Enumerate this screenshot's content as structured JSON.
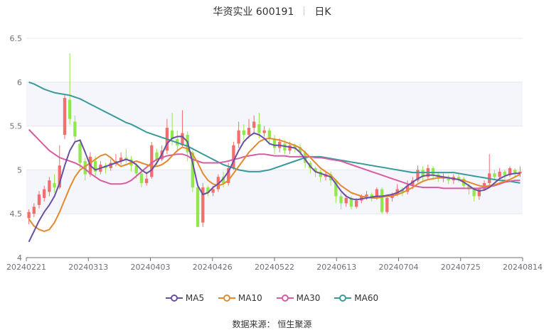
{
  "header": {
    "stock": "华资实业 600191",
    "period": "日K"
  },
  "source": "数据来源： 恒生聚源",
  "colors": {
    "up": "#f46e6e",
    "down": "#91e84c",
    "ma5": "#6b4fa3",
    "ma10": "#e38a2f",
    "ma30": "#d65ca4",
    "ma60": "#3a9a9a",
    "band": "#f4f6fb"
  },
  "chart_data": {
    "type": "candlestick",
    "title": "华资实业 600191 日K",
    "ylim": [
      4,
      6.5
    ],
    "y_ticks": [
      "4",
      "4.5",
      "5",
      "5.5",
      "6",
      "6.5"
    ],
    "x_tick_labels": [
      "20240221",
      "20240313",
      "20240403",
      "20240426",
      "20240522",
      "20240613",
      "20240704",
      "20240725",
      "20240814"
    ],
    "legend": [
      "MA5",
      "MA10",
      "MA30",
      "MA60"
    ],
    "candles": [
      [
        4.45,
        4.52,
        4.38,
        4.55
      ],
      [
        4.5,
        4.58,
        4.46,
        4.62
      ],
      [
        4.6,
        4.72,
        4.56,
        4.76
      ],
      [
        4.68,
        4.78,
        4.64,
        4.82
      ],
      [
        4.75,
        4.88,
        4.7,
        4.92
      ],
      [
        4.85,
        4.8,
        4.74,
        4.95
      ],
      [
        4.8,
        5.05,
        4.78,
        5.28
      ],
      [
        5.4,
        5.82,
        5.35,
        5.85
      ],
      [
        5.8,
        5.58,
        5.52,
        6.33
      ],
      [
        5.55,
        5.38,
        5.3,
        5.62
      ],
      [
        5.3,
        5.08,
        5.02,
        5.35
      ],
      [
        5.1,
        4.95,
        4.88,
        5.14
      ],
      [
        4.95,
        5.15,
        4.92,
        5.2
      ],
      [
        5.1,
        4.98,
        4.92,
        5.16
      ],
      [
        4.98,
        5.06,
        4.95,
        5.1
      ],
      [
        5.05,
        5.02,
        4.96,
        5.08
      ],
      [
        5.02,
        5.08,
        4.99,
        5.12
      ],
      [
        5.08,
        5.1,
        5.04,
        5.18
      ],
      [
        5.1,
        5.14,
        5.06,
        5.2
      ],
      [
        5.14,
        5.12,
        5.08,
        5.24
      ],
      [
        5.12,
        5.05,
        4.98,
        5.16
      ],
      [
        5.05,
        4.96,
        4.9,
        5.08
      ],
      [
        4.96,
        4.85,
        4.8,
        4.98
      ],
      [
        4.85,
        4.9,
        4.82,
        4.98
      ],
      [
        4.92,
        5.28,
        4.9,
        5.32
      ],
      [
        5.2,
        5.12,
        5.05,
        5.24
      ],
      [
        5.12,
        5.22,
        5.1,
        5.28
      ],
      [
        5.22,
        5.48,
        5.18,
        5.58
      ],
      [
        5.45,
        5.35,
        5.28,
        5.65
      ],
      [
        5.35,
        5.28,
        5.2,
        5.45
      ],
      [
        5.28,
        5.42,
        5.25,
        5.68
      ],
      [
        5.4,
        5.2,
        5.1,
        5.44
      ],
      [
        5.2,
        4.8,
        4.75,
        5.22
      ],
      [
        4.8,
        4.35,
        4.35,
        4.82
      ],
      [
        4.4,
        4.8,
        4.35,
        4.85
      ],
      [
        4.8,
        4.74,
        4.7,
        4.82
      ],
      [
        4.74,
        4.78,
        4.7,
        4.82
      ],
      [
        4.78,
        4.92,
        4.75,
        4.95
      ],
      [
        4.92,
        4.85,
        4.8,
        4.98
      ],
      [
        4.85,
        5.02,
        4.82,
        5.08
      ],
      [
        5.02,
        5.28,
        5.0,
        5.32
      ],
      [
        5.3,
        5.45,
        5.25,
        5.55
      ],
      [
        5.45,
        5.4,
        5.34,
        5.52
      ],
      [
        5.4,
        5.48,
        5.36,
        5.58
      ],
      [
        5.48,
        5.55,
        5.42,
        5.62
      ],
      [
        5.52,
        5.42,
        5.36,
        5.65
      ],
      [
        5.42,
        5.45,
        5.38,
        5.5
      ],
      [
        5.45,
        5.35,
        5.28,
        5.48
      ],
      [
        5.35,
        5.25,
        5.18,
        5.4
      ],
      [
        5.25,
        5.32,
        5.2,
        5.36
      ],
      [
        5.3,
        5.22,
        5.18,
        5.34
      ],
      [
        5.22,
        5.28,
        5.18,
        5.32
      ],
      [
        5.28,
        5.24,
        5.2,
        5.3
      ],
      [
        5.26,
        5.2,
        5.16,
        5.3
      ],
      [
        5.2,
        5.08,
        5.02,
        5.22
      ],
      [
        5.08,
        5.02,
        4.96,
        5.1
      ],
      [
        5.02,
        4.98,
        4.92,
        5.04
      ],
      [
        4.98,
        4.92,
        4.86,
        5.0
      ],
      [
        4.92,
        4.95,
        4.88,
        4.98
      ],
      [
        4.95,
        4.88,
        4.82,
        4.98
      ],
      [
        4.88,
        4.7,
        4.62,
        4.9
      ],
      [
        4.7,
        4.62,
        4.55,
        4.74
      ],
      [
        4.62,
        4.68,
        4.58,
        4.72
      ],
      [
        4.68,
        4.58,
        4.55,
        4.7
      ],
      [
        4.58,
        4.65,
        4.56,
        4.68
      ],
      [
        4.65,
        4.7,
        4.62,
        4.72
      ],
      [
        4.7,
        4.72,
        4.66,
        4.76
      ],
      [
        4.72,
        4.68,
        4.64,
        4.74
      ],
      [
        4.68,
        4.78,
        4.66,
        4.8
      ],
      [
        4.78,
        4.52,
        4.5,
        4.8
      ],
      [
        4.52,
        4.68,
        4.5,
        4.72
      ],
      [
        4.68,
        4.72,
        4.64,
        4.74
      ],
      [
        4.72,
        4.78,
        4.7,
        4.84
      ],
      [
        4.78,
        4.75,
        4.7,
        4.8
      ],
      [
        4.75,
        4.82,
        4.72,
        4.88
      ],
      [
        4.82,
        4.88,
        4.78,
        4.92
      ],
      [
        4.88,
        5.0,
        4.86,
        5.05
      ],
      [
        5.0,
        4.92,
        4.88,
        5.04
      ],
      [
        4.92,
        5.02,
        4.9,
        5.06
      ],
      [
        5.02,
        4.95,
        4.9,
        5.04
      ],
      [
        4.95,
        4.9,
        4.86,
        4.98
      ],
      [
        4.9,
        4.92,
        4.86,
        4.96
      ],
      [
        4.92,
        4.88,
        4.84,
        4.94
      ],
      [
        4.88,
        4.92,
        4.84,
        4.95
      ],
      [
        4.92,
        4.9,
        4.86,
        4.96
      ],
      [
        4.9,
        4.82,
        4.78,
        4.92
      ],
      [
        4.82,
        4.78,
        4.72,
        4.84
      ],
      [
        4.78,
        4.7,
        4.64,
        4.8
      ],
      [
        4.7,
        4.78,
        4.66,
        4.8
      ],
      [
        4.78,
        4.85,
        4.76,
        4.88
      ],
      [
        4.85,
        4.96,
        4.82,
        5.18
      ],
      [
        4.96,
        4.92,
        4.88,
        5.0
      ],
      [
        4.92,
        4.98,
        4.9,
        5.02
      ],
      [
        4.98,
        4.94,
        4.9,
        5.0
      ],
      [
        4.94,
        5.02,
        4.92,
        5.04
      ],
      [
        5.0,
        4.96,
        4.92,
        5.02
      ],
      [
        4.96,
        4.98,
        4.92,
        5.04
      ]
    ],
    "ma5": [
      4.18,
      4.3,
      4.42,
      4.52,
      4.6,
      4.7,
      4.85,
      5.05,
      5.22,
      5.32,
      5.34,
      5.2,
      5.05,
      5.0,
      5.02,
      5.04,
      5.06,
      5.08,
      5.1,
      5.12,
      5.1,
      5.06,
      5.0,
      4.96,
      5.0,
      5.08,
      5.18,
      5.3,
      5.36,
      5.38,
      5.38,
      5.32,
      5.08,
      4.82,
      4.72,
      4.74,
      4.8,
      4.84,
      4.9,
      4.98,
      5.1,
      5.22,
      5.32,
      5.38,
      5.42,
      5.4,
      5.36,
      5.3,
      5.28,
      5.28,
      5.27,
      5.26,
      5.25,
      5.2,
      5.12,
      5.04,
      4.98,
      4.96,
      4.94,
      4.92,
      4.84,
      4.76,
      4.7,
      4.67,
      4.66,
      4.67,
      4.68,
      4.69,
      4.7,
      4.7,
      4.71,
      4.72,
      4.74,
      4.77,
      4.82,
      4.86,
      4.9,
      4.93,
      4.94,
      4.94,
      4.93,
      4.92,
      4.91,
      4.9,
      4.89,
      4.86,
      4.82,
      4.78,
      4.76,
      4.77,
      4.8,
      4.85,
      4.9,
      4.93,
      4.95,
      4.96,
      4.96
    ],
    "ma10": [
      4.44,
      4.36,
      4.32,
      4.3,
      4.32,
      4.4,
      4.52,
      4.66,
      4.8,
      4.92,
      5.0,
      5.04,
      5.08,
      5.12,
      5.16,
      5.18,
      5.14,
      5.08,
      5.04,
      5.06,
      5.08,
      5.1,
      5.08,
      5.06,
      5.04,
      5.04,
      5.06,
      5.1,
      5.16,
      5.22,
      5.26,
      5.24,
      5.18,
      5.08,
      4.96,
      4.88,
      4.84,
      4.82,
      4.84,
      4.88,
      4.96,
      5.04,
      5.12,
      5.2,
      5.26,
      5.32,
      5.35,
      5.36,
      5.35,
      5.34,
      5.32,
      5.3,
      5.28,
      5.25,
      5.2,
      5.14,
      5.08,
      5.02,
      4.98,
      4.94,
      4.88,
      4.82,
      4.78,
      4.74,
      4.72,
      4.7,
      4.69,
      4.68,
      4.68,
      4.69,
      4.7,
      4.7,
      4.72,
      4.74,
      4.77,
      4.8,
      4.84,
      4.87,
      4.89,
      4.9,
      4.91,
      4.91,
      4.91,
      4.9,
      4.89,
      4.88,
      4.86,
      4.84,
      4.82,
      4.81,
      4.82,
      4.83,
      4.85,
      4.87,
      4.89,
      4.92,
      4.95
    ],
    "ma30": [
      5.46,
      5.4,
      5.34,
      5.28,
      5.22,
      5.18,
      5.14,
      5.12,
      5.1,
      5.08,
      5.05,
      5.01,
      4.96,
      4.92,
      4.88,
      4.86,
      4.84,
      4.84,
      4.84,
      4.85,
      4.88,
      4.93,
      4.98,
      5.03,
      5.08,
      5.12,
      5.14,
      5.16,
      5.17,
      5.18,
      5.18,
      5.16,
      5.12,
      5.1,
      5.08,
      5.08,
      5.08,
      5.08,
      5.09,
      5.1,
      5.12,
      5.13,
      5.15,
      5.16,
      5.17,
      5.18,
      5.18,
      5.17,
      5.16,
      5.16,
      5.16,
      5.15,
      5.15,
      5.15,
      5.15,
      5.15,
      5.14,
      5.14,
      5.13,
      5.12,
      5.11,
      5.1,
      5.08,
      5.06,
      5.04,
      5.02,
      5.0,
      4.98,
      4.96,
      4.94,
      4.92,
      4.9,
      4.88,
      4.86,
      4.84,
      4.82,
      4.81,
      4.8,
      4.8,
      4.8,
      4.8,
      4.79,
      4.79,
      4.79,
      4.79,
      4.79,
      4.79,
      4.79,
      4.79,
      4.8,
      4.81,
      4.82,
      4.84,
      4.86,
      4.87,
      4.88,
      4.88
    ],
    "ma60": [
      6.0,
      5.98,
      5.95,
      5.92,
      5.9,
      5.88,
      5.87,
      5.86,
      5.85,
      5.83,
      5.81,
      5.78,
      5.75,
      5.72,
      5.69,
      5.66,
      5.63,
      5.6,
      5.57,
      5.54,
      5.52,
      5.49,
      5.46,
      5.43,
      5.41,
      5.39,
      5.37,
      5.35,
      5.33,
      5.31,
      5.29,
      5.27,
      5.24,
      5.21,
      5.18,
      5.15,
      5.12,
      5.09,
      5.06,
      5.04,
      5.02,
      5.0,
      4.99,
      4.98,
      4.98,
      4.98,
      4.99,
      5.0,
      5.02,
      5.04,
      5.06,
      5.08,
      5.1,
      5.12,
      5.14,
      5.15,
      5.15,
      5.15,
      5.14,
      5.13,
      5.12,
      5.11,
      5.1,
      5.09,
      5.08,
      5.07,
      5.06,
      5.05,
      5.04,
      5.03,
      5.02,
      5.01,
      5.0,
      4.99,
      4.98,
      4.97,
      4.97,
      4.97,
      4.97,
      4.97,
      4.97,
      4.97,
      4.97,
      4.97,
      4.96,
      4.95,
      4.94,
      4.93,
      4.92,
      4.91,
      4.9,
      4.89,
      4.88,
      4.88,
      4.87,
      4.86,
      4.85
    ]
  }
}
